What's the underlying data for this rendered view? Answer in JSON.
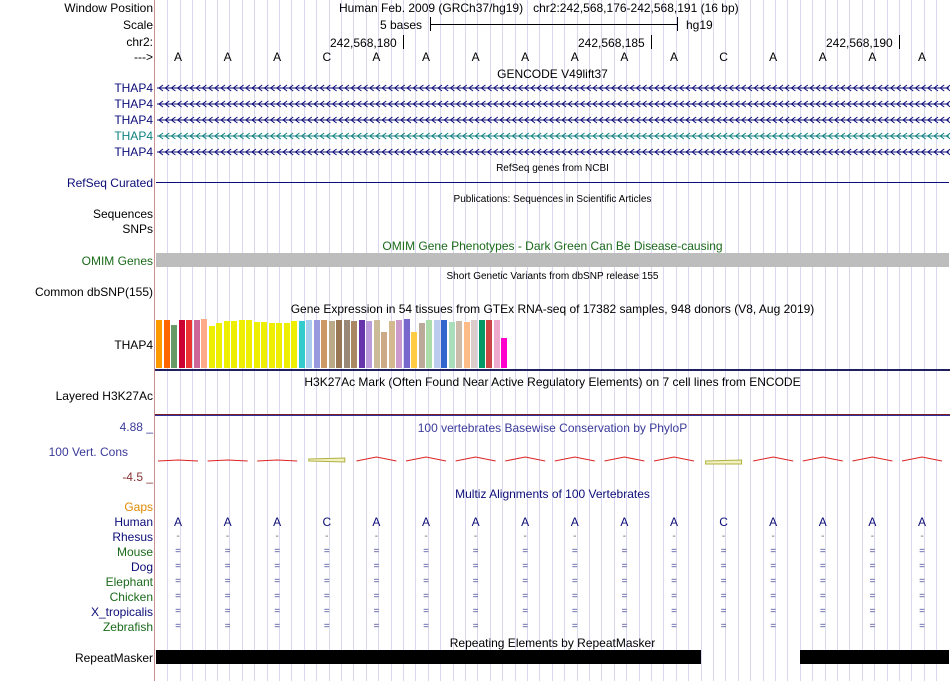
{
  "header": {
    "window_position_label": "Window Position",
    "scale_label": "Scale",
    "chr_label": "chr2:",
    "strand_label": "--->",
    "assembly": "Human Feb. 2009 (GRCh37/hg19)",
    "position": "chr2:242,568,176-242,568,191 (16 bp)",
    "scale_text": "5 bases",
    "db": "hg19",
    "coords": [
      "242,568,180",
      "242,568,185",
      "242,568,190"
    ]
  },
  "sequence": [
    "A",
    "A",
    "A",
    "C",
    "A",
    "A",
    "A",
    "A",
    "A",
    "A",
    "A",
    "C",
    "A",
    "A",
    "A",
    "A"
  ],
  "gencode": {
    "title": "GENCODE V49lift37",
    "rows": [
      {
        "label": "THAP4",
        "color": "#0c0c78"
      },
      {
        "label": "THAP4",
        "color": "#0c0c78"
      },
      {
        "label": "THAP4",
        "color": "#0c0c78"
      },
      {
        "label": "THAP4",
        "color": "#0e8080"
      },
      {
        "label": "THAP4",
        "color": "#0c0c78"
      }
    ]
  },
  "refseq": {
    "title": "RefSeq genes from NCBI",
    "label": "RefSeq Curated"
  },
  "publications": {
    "title": "Publications: Sequences in Scientific Articles",
    "label1": "Sequences",
    "label2": "SNPs"
  },
  "omim": {
    "title": "OMIM Gene Phenotypes - Dark Green Can Be Disease-causing",
    "label": "OMIM Genes"
  },
  "dbsnp": {
    "title": "Short Genetic Variants from dbSNP release 155",
    "label": "Common dbSNP(155)"
  },
  "gtex": {
    "title": "Gene Expression in 54 tissues from GTEx RNA-seq of 17382 samples, 948 donors (V8, Aug 2019)",
    "label": "THAP4",
    "bars": [
      {
        "color": "#ff9900",
        "level": 0.92
      },
      {
        "color": "#ff6600",
        "level": 0.92
      },
      {
        "color": "#669966",
        "level": 0.82
      },
      {
        "color": "#cc0033",
        "level": 0.92
      },
      {
        "color": "#ee3333",
        "level": 0.92
      },
      {
        "color": "#cc6699",
        "level": 0.92
      },
      {
        "color": "#ffaa88",
        "level": 0.94
      },
      {
        "color": "#eeee00",
        "level": 0.8
      },
      {
        "color": "#eeee00",
        "level": 0.86
      },
      {
        "color": "#eeee00",
        "level": 0.9
      },
      {
        "color": "#eeee00",
        "level": 0.9
      },
      {
        "color": "#eeee00",
        "level": 0.92
      },
      {
        "color": "#eeee00",
        "level": 0.92
      },
      {
        "color": "#eeee00",
        "level": 0.88
      },
      {
        "color": "#eeee00",
        "level": 0.88
      },
      {
        "color": "#eeee00",
        "level": 0.86
      },
      {
        "color": "#eeee00",
        "level": 0.86
      },
      {
        "color": "#eeee00",
        "level": 0.86
      },
      {
        "color": "#eeee00",
        "level": 0.9
      },
      {
        "color": "#33cccc",
        "level": 0.9
      },
      {
        "color": "#aaccee",
        "level": 0.92
      },
      {
        "color": "#9999dd",
        "level": 0.92
      },
      {
        "color": "#cc9966",
        "level": 0.92
      },
      {
        "color": "#bbaa88",
        "level": 0.9
      },
      {
        "color": "#997755",
        "level": 0.92
      },
      {
        "color": "#998877",
        "level": 0.92
      },
      {
        "color": "#aa8866",
        "level": 0.9
      },
      {
        "color": "#6633aa",
        "level": 0.92
      },
      {
        "color": "#bb99dd",
        "level": 0.9
      },
      {
        "color": "#ccbb99",
        "level": 0.92
      },
      {
        "color": "#ccaa88",
        "level": 0.7
      },
      {
        "color": "#d4b890",
        "level": 0.9
      },
      {
        "color": "#cc99cc",
        "level": 0.92
      },
      {
        "color": "#7766cc",
        "level": 0.94
      },
      {
        "color": "#ffcc44",
        "level": 0.7
      },
      {
        "color": "#bbaa99",
        "level": 0.86
      },
      {
        "color": "#aaddaa",
        "level": 0.92
      },
      {
        "color": "#bbccee",
        "level": 0.92
      },
      {
        "color": "#3366cc",
        "level": 0.92
      },
      {
        "color": "#aaddbb",
        "level": 0.88
      },
      {
        "color": "#ccbbaa",
        "level": 0.9
      },
      {
        "color": "#ffbb88",
        "level": 0.88
      },
      {
        "color": "#ddcccc",
        "level": 0.92
      },
      {
        "color": "#009966",
        "level": 0.92
      },
      {
        "color": "#cc4444",
        "level": 0.92
      },
      {
        "color": "#eeaacc",
        "level": 0.92
      },
      {
        "color": "#ff00cc",
        "level": 0.58
      }
    ]
  },
  "h3k27ac": {
    "title": "H3K27Ac Mark (Often Found Near Active Regulatory Elements) on 7 cell lines from ENCODE",
    "label": "Layered H3K27Ac"
  },
  "phylop": {
    "title": "100 vertebrates Basewise Conservation by PhyloP",
    "label": "100 Vert. Cons",
    "max": "4.88 _",
    "min": "-4.5 _"
  },
  "multiz": {
    "title": "Multiz Alignments of 100 Vertebrates",
    "gaps_label": "Gaps",
    "species": [
      {
        "name": "Human",
        "color": "#0c0c78"
      },
      {
        "name": "Rhesus",
        "color": "#0c0c78"
      },
      {
        "name": "Mouse",
        "color": "#1a6a1a"
      },
      {
        "name": "Dog",
        "color": "#0c0c78"
      },
      {
        "name": "Elephant",
        "color": "#1a6a1a"
      },
      {
        "name": "Chicken",
        "color": "#1a6a1a"
      },
      {
        "name": "X_tropicalis",
        "color": "#0c0c78"
      },
      {
        "name": "Zebrafish",
        "color": "#1a6a1a"
      }
    ],
    "rhesus_char": "-",
    "other_char": "="
  },
  "repeatmasker": {
    "title": "Repeating Elements by RepeatMasker",
    "label": "RepeatMasker"
  },
  "colors": {
    "navy": "#0c0c78",
    "omim_green": "#1a6a1a",
    "gaps_orange": "#e08a00",
    "phylop_blue": "#3a3a9a",
    "phylop_min": "#883333"
  }
}
